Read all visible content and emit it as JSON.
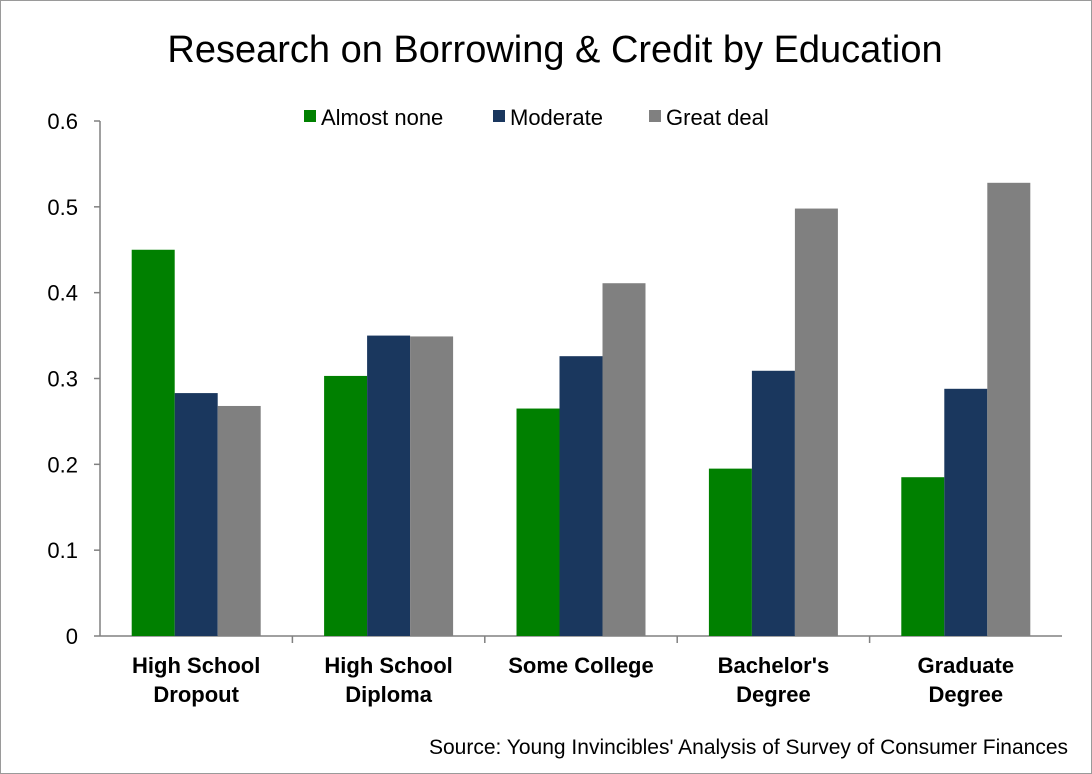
{
  "chart_data": {
    "type": "bar",
    "title": "Research on Borrowing & Credit by Education",
    "source": "Source: Young Invincibles' Analysis of Survey of Consumer Finances",
    "categories": [
      [
        "High School",
        "Dropout"
      ],
      [
        "High School",
        "Diploma"
      ],
      [
        "Some College"
      ],
      [
        "Bachelor's",
        "Degree"
      ],
      [
        "Graduate",
        "Degree"
      ]
    ],
    "series": [
      {
        "name": "Almost none",
        "color": "#008000",
        "values": [
          0.45,
          0.303,
          0.265,
          0.195,
          0.185
        ]
      },
      {
        "name": "Moderate",
        "color": "#1a375e",
        "values": [
          0.283,
          0.35,
          0.326,
          0.309,
          0.288
        ]
      },
      {
        "name": "Great deal",
        "color": "#808080",
        "values": [
          0.268,
          0.349,
          0.411,
          0.498,
          0.528
        ]
      }
    ],
    "yticks": [
      "0",
      "0.1",
      "0.2",
      "0.3",
      "0.4",
      "0.5",
      "0.6"
    ],
    "ylim": [
      0,
      0.6
    ],
    "grid": false,
    "legend_position": "top"
  }
}
